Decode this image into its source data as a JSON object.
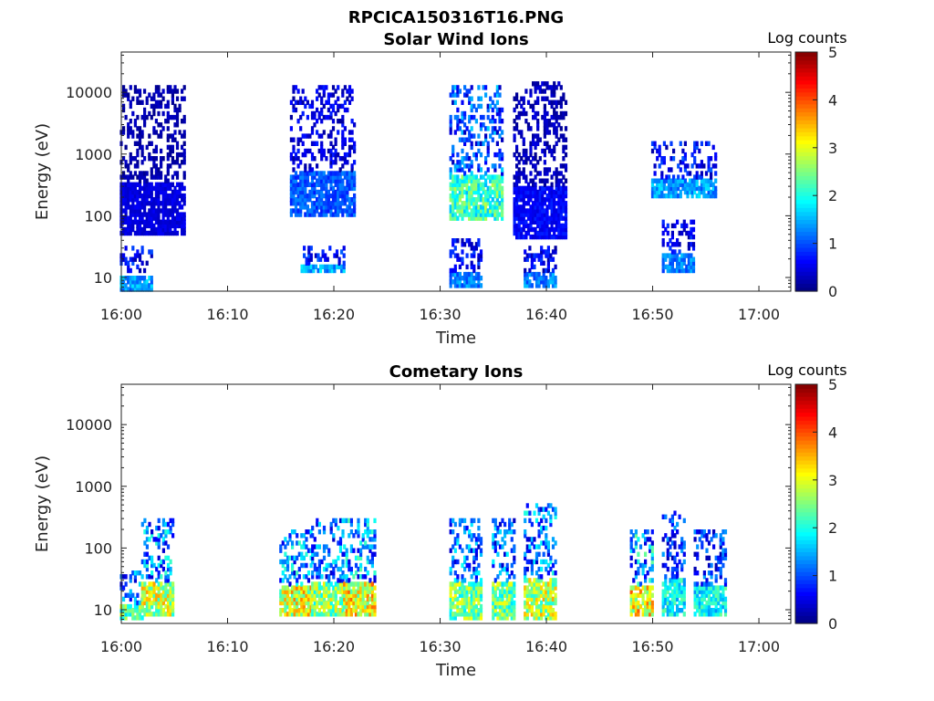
{
  "figure_title": "RPCICA150316T16.PNG",
  "colorbar_label": "Log counts",
  "colorbar_ticks": [
    "0",
    "1",
    "2",
    "3",
    "4",
    "5"
  ],
  "chart_data": [
    {
      "type": "heatmap",
      "title": "Solar Wind Ions",
      "xlabel": "Time",
      "ylabel": "Energy (eV)",
      "x_ticks": [
        "16:00",
        "16:10",
        "16:20",
        "16:30",
        "16:40",
        "16:50",
        "17:00"
      ],
      "y_ticks": [
        "10",
        "100",
        "1000",
        "10000"
      ],
      "y_scale": "log",
      "xlim": [
        "16:00",
        "17:03"
      ],
      "ylim": [
        6,
        45000
      ],
      "color_scale": "jet",
      "color_range": [
        0,
        5
      ],
      "bursts": [
        {
          "t_start": "16:00",
          "t_end": "16:02",
          "e_low": 6,
          "e_high": 30,
          "peak_log_counts": 1.8
        },
        {
          "t_start": "16:00",
          "t_end": "16:05",
          "e_low": 50,
          "e_high": 12000,
          "peak_log_counts": 0.6
        },
        {
          "t_start": "16:17",
          "t_end": "16:20",
          "e_low": 12,
          "e_high": 30,
          "peak_log_counts": 1.9
        },
        {
          "t_start": "16:16",
          "t_end": "16:21",
          "e_low": 100,
          "e_high": 12000,
          "peak_log_counts": 1.3
        },
        {
          "t_start": "16:31",
          "t_end": "16:33",
          "e_low": 7,
          "e_high": 40,
          "peak_log_counts": 1.6
        },
        {
          "t_start": "16:31",
          "t_end": "16:35",
          "e_low": 80,
          "e_high": 12000,
          "peak_log_counts": 2.8
        },
        {
          "t_start": "16:38",
          "t_end": "16:40",
          "e_low": 7,
          "e_high": 30,
          "peak_log_counts": 1.6
        },
        {
          "t_start": "16:37",
          "t_end": "16:41",
          "e_low": 40,
          "e_high": 15000,
          "peak_log_counts": 0.8
        },
        {
          "t_start": "16:51",
          "t_end": "16:53",
          "e_low": 12,
          "e_high": 80,
          "peak_log_counts": 1.6
        },
        {
          "t_start": "16:50",
          "t_end": "16:55",
          "e_low": 200,
          "e_high": 1600,
          "peak_log_counts": 1.8
        }
      ]
    },
    {
      "type": "heatmap",
      "title": "Cometary Ions",
      "xlabel": "Time",
      "ylabel": "Energy (eV)",
      "x_ticks": [
        "16:00",
        "16:10",
        "16:20",
        "16:30",
        "16:40",
        "16:50",
        "17:00"
      ],
      "y_ticks": [
        "10",
        "100",
        "1000",
        "10000"
      ],
      "y_scale": "log",
      "xlim": [
        "16:00",
        "17:03"
      ],
      "ylim": [
        6,
        45000
      ],
      "color_scale": "jet",
      "color_range": [
        0,
        5
      ],
      "bursts": [
        {
          "t_start": "16:00",
          "t_end": "16:01",
          "e_low": 7,
          "e_high": 40,
          "peak_log_counts": 3.0
        },
        {
          "t_start": "16:02",
          "t_end": "16:04",
          "e_low": 8,
          "e_high": 300,
          "peak_log_counts": 3.6
        },
        {
          "t_start": "16:15",
          "t_end": "16:17",
          "e_low": 8,
          "e_high": 200,
          "peak_log_counts": 3.8
        },
        {
          "t_start": "16:18",
          "t_end": "16:20",
          "e_low": 8,
          "e_high": 300,
          "peak_log_counts": 3.3
        },
        {
          "t_start": "16:21",
          "t_end": "16:23",
          "e_low": 8,
          "e_high": 300,
          "peak_log_counts": 3.9
        },
        {
          "t_start": "16:31",
          "t_end": "16:33",
          "e_low": 7,
          "e_high": 300,
          "peak_log_counts": 3.2
        },
        {
          "t_start": "16:35",
          "t_end": "16:36",
          "e_low": 7,
          "e_high": 300,
          "peak_log_counts": 3.1
        },
        {
          "t_start": "16:38",
          "t_end": "16:40",
          "e_low": 7,
          "e_high": 500,
          "peak_log_counts": 3.6
        },
        {
          "t_start": "16:48",
          "t_end": "16:49",
          "e_low": 8,
          "e_high": 200,
          "peak_log_counts": 4.0
        },
        {
          "t_start": "16:51",
          "t_end": "16:52",
          "e_low": 8,
          "e_high": 400,
          "peak_log_counts": 2.4
        },
        {
          "t_start": "16:54",
          "t_end": "16:56",
          "e_low": 8,
          "e_high": 200,
          "peak_log_counts": 2.4
        }
      ]
    }
  ]
}
